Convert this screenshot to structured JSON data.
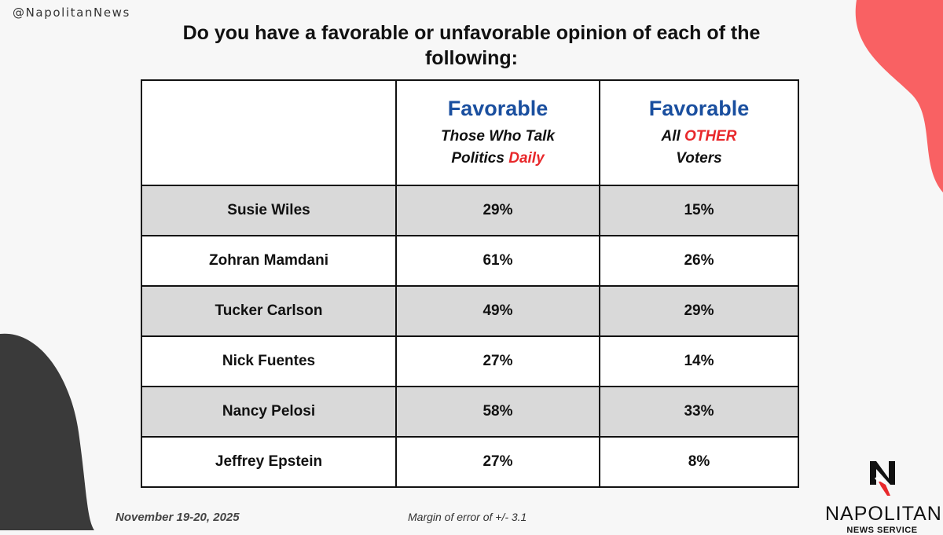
{
  "handle": "@NapolitanNews",
  "title": "Do you have a favorable or unfavorable opinion of each of the following:",
  "chart_data": {
    "type": "table",
    "columns": [
      {
        "label": "Favorable",
        "sub_prefix": "Those Who Talk",
        "sub_line2": "Politics",
        "sub_highlight": "Daily"
      },
      {
        "label": "Favorable",
        "sub_prefix": "All",
        "sub_highlight": "OTHER",
        "sub_line2": "Voters"
      }
    ],
    "rows": [
      {
        "name": "Susie Wiles",
        "values": [
          "29%",
          "15%"
        ]
      },
      {
        "name": "Zohran Mamdani",
        "values": [
          "61%",
          "26%"
        ]
      },
      {
        "name": "Tucker Carlson",
        "values": [
          "49%",
          "29%"
        ]
      },
      {
        "name": "Nick Fuentes",
        "values": [
          "27%",
          "14%"
        ]
      },
      {
        "name": "Nancy Pelosi",
        "values": [
          "58%",
          "33%"
        ]
      },
      {
        "name": "Jeffrey Epstein",
        "values": [
          "27%",
          "8%"
        ]
      }
    ]
  },
  "footer": {
    "date": "November 19-20, 2025",
    "moe": "Margin of error of +/- 3.1"
  },
  "logo": {
    "name": "NAPOLITAN",
    "sub": "NEWS SERVICE"
  },
  "colors": {
    "accent_blue": "#1a4f9f",
    "accent_red": "#e8282b",
    "blob_red": "#f96163",
    "blob_dark": "#3a3a3a"
  }
}
